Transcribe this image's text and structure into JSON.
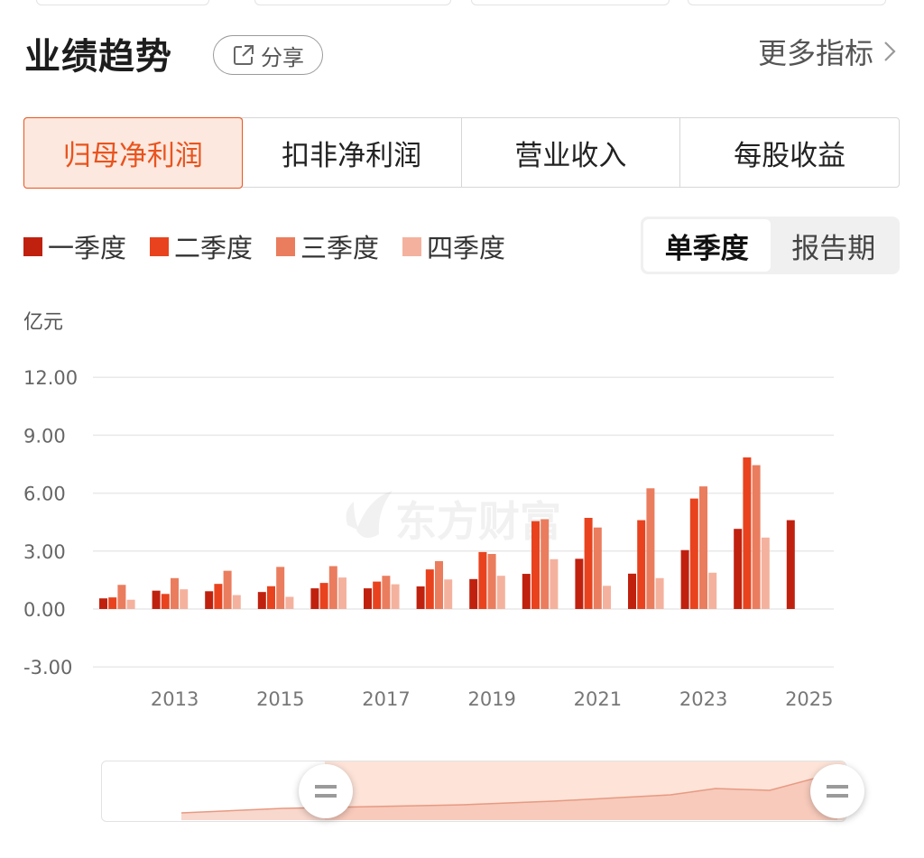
{
  "header": {
    "title": "业绩趋势",
    "share_label": "分享",
    "more_label": "更多指标"
  },
  "tabs": [
    {
      "label": "归母净利润",
      "active": true
    },
    {
      "label": "扣非净利润",
      "active": false
    },
    {
      "label": "营业收入",
      "active": false
    },
    {
      "label": "每股收益",
      "active": false
    }
  ],
  "legend": [
    {
      "label": "一季度",
      "color": "#c0210f"
    },
    {
      "label": "二季度",
      "color": "#e8431e"
    },
    {
      "label": "三季度",
      "color": "#ea7d5e"
    },
    {
      "label": "四季度",
      "color": "#f4b29e"
    }
  ],
  "period_toggle": {
    "options": [
      "单季度",
      "报告期"
    ],
    "selected": "单季度"
  },
  "watermark": "东方财富",
  "chart_data": {
    "type": "bar",
    "unit": "亿元",
    "ylim": [
      -3,
      12
    ],
    "yticks": [
      "12.00",
      "9.00",
      "6.00",
      "3.00",
      "0.00",
      "-3.00"
    ],
    "ytick_values": [
      12,
      9,
      6,
      3,
      0,
      -3
    ],
    "x_tick_labels": [
      "2013",
      "2015",
      "2017",
      "2019",
      "2021",
      "2023",
      "2025"
    ],
    "x_tick_years": [
      2013,
      2015,
      2017,
      2019,
      2021,
      2023,
      2025
    ],
    "years": [
      2012,
      2013,
      2014,
      2015,
      2016,
      2017,
      2018,
      2019,
      2020,
      2021,
      2022,
      2023,
      2024,
      2025
    ],
    "series": [
      {
        "name": "一季度",
        "values": [
          0.55,
          0.95,
          0.92,
          0.88,
          1.07,
          1.07,
          1.17,
          1.55,
          1.82,
          2.6,
          1.83,
          3.05,
          4.15,
          4.6
        ]
      },
      {
        "name": "二季度",
        "values": [
          0.6,
          0.78,
          1.3,
          1.18,
          1.35,
          1.42,
          2.05,
          2.95,
          4.55,
          4.72,
          4.6,
          5.72,
          7.85,
          null
        ]
      },
      {
        "name": "三季度",
        "values": [
          1.25,
          1.6,
          1.98,
          2.18,
          2.22,
          1.72,
          2.48,
          2.85,
          4.65,
          4.22,
          6.25,
          6.35,
          7.45,
          null
        ]
      },
      {
        "name": "四季度",
        "values": [
          0.48,
          1.02,
          0.72,
          0.63,
          1.63,
          1.28,
          1.53,
          1.72,
          2.58,
          1.2,
          1.6,
          1.88,
          3.7,
          null
        ]
      }
    ]
  },
  "range_slider": {
    "start_fraction": 0.3,
    "end_fraction": 1.0
  }
}
